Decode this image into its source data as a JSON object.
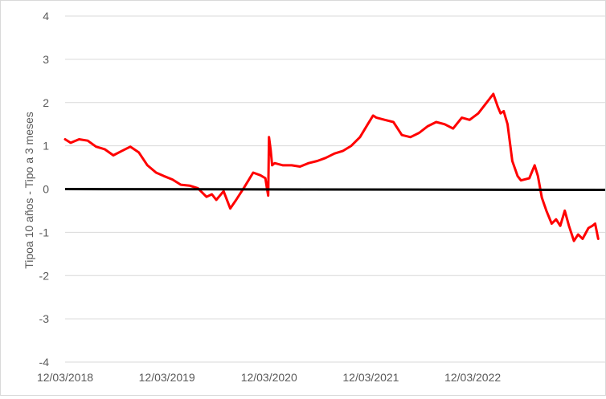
{
  "chart_data": {
    "type": "line",
    "title": "",
    "xlabel": "",
    "ylabel": "Tipoa 10 años - Tipo a 3 meses",
    "ylim": [
      -4,
      4
    ],
    "yticks": [
      4,
      3,
      2,
      1,
      0,
      -1,
      -2,
      -3,
      -4
    ],
    "xlim": [
      "2018-03-12",
      "2023-06-30"
    ],
    "xticks": [
      {
        "date": "2018-03-12",
        "label": "12/03/2018"
      },
      {
        "date": "2019-03-12",
        "label": "12/03/2019"
      },
      {
        "date": "2020-03-12",
        "label": "12/03/2020"
      },
      {
        "date": "2021-03-12",
        "label": "12/03/2021"
      },
      {
        "date": "2022-03-12",
        "label": "12/03/2022"
      }
    ],
    "grid": true,
    "zero_line_color": "#000000",
    "series": [
      {
        "color": "#ff0000",
        "x": [
          "2018-03-12",
          "2018-04-01",
          "2018-05-01",
          "2018-06-01",
          "2018-07-01",
          "2018-08-01",
          "2018-09-01",
          "2018-10-01",
          "2018-11-01",
          "2018-12-01",
          "2019-01-01",
          "2019-02-01",
          "2019-03-01",
          "2019-04-01",
          "2019-05-01",
          "2019-06-01",
          "2019-07-01",
          "2019-08-01",
          "2019-08-20",
          "2019-09-05",
          "2019-10-01",
          "2019-10-25",
          "2019-11-15",
          "2019-12-15",
          "2020-01-15",
          "2020-02-10",
          "2020-02-28",
          "2020-03-05",
          "2020-03-09",
          "2020-03-12",
          "2020-03-18",
          "2020-03-23",
          "2020-04-01",
          "2020-05-01",
          "2020-06-01",
          "2020-07-01",
          "2020-08-01",
          "2020-09-01",
          "2020-10-01",
          "2020-11-01",
          "2020-12-01",
          "2021-01-01",
          "2021-02-01",
          "2021-03-01",
          "2021-03-20",
          "2021-04-01",
          "2021-05-01",
          "2021-06-01",
          "2021-07-01",
          "2021-08-01",
          "2021-09-01",
          "2021-10-01",
          "2021-11-01",
          "2021-12-01",
          "2022-01-01",
          "2022-02-01",
          "2022-03-01",
          "2022-04-01",
          "2022-05-01",
          "2022-05-25",
          "2022-06-10",
          "2022-06-20",
          "2022-07-01",
          "2022-07-15",
          "2022-08-01",
          "2022-08-20",
          "2022-09-01",
          "2022-10-01",
          "2022-10-20",
          "2022-11-01",
          "2022-11-15",
          "2022-12-01",
          "2022-12-20",
          "2023-01-05",
          "2023-01-20",
          "2023-02-05",
          "2023-02-20",
          "2023-03-10",
          "2023-03-25",
          "2023-04-10",
          "2023-05-01",
          "2023-05-15",
          "2023-05-25",
          "2023-06-05"
        ],
        "y": [
          1.15,
          1.07,
          1.15,
          1.12,
          0.98,
          0.92,
          0.78,
          0.88,
          0.98,
          0.85,
          0.55,
          0.38,
          0.3,
          0.22,
          0.1,
          0.08,
          0.02,
          -0.18,
          -0.12,
          -0.25,
          -0.05,
          -0.45,
          -0.25,
          0.05,
          0.38,
          0.32,
          0.25,
          0.0,
          -0.15,
          1.2,
          0.9,
          0.55,
          0.6,
          0.55,
          0.55,
          0.52,
          0.6,
          0.65,
          0.72,
          0.82,
          0.88,
          1.0,
          1.2,
          1.5,
          1.7,
          1.65,
          1.6,
          1.55,
          1.25,
          1.2,
          1.3,
          1.45,
          1.55,
          1.5,
          1.4,
          1.65,
          1.6,
          1.75,
          2.0,
          2.2,
          1.9,
          1.75,
          1.8,
          1.5,
          0.65,
          0.3,
          0.2,
          0.25,
          0.55,
          0.3,
          -0.2,
          -0.5,
          -0.8,
          -0.7,
          -0.85,
          -0.5,
          -0.85,
          -1.2,
          -1.05,
          -1.15,
          -0.9,
          -0.85,
          -0.8,
          -1.15
        ]
      }
    ]
  }
}
